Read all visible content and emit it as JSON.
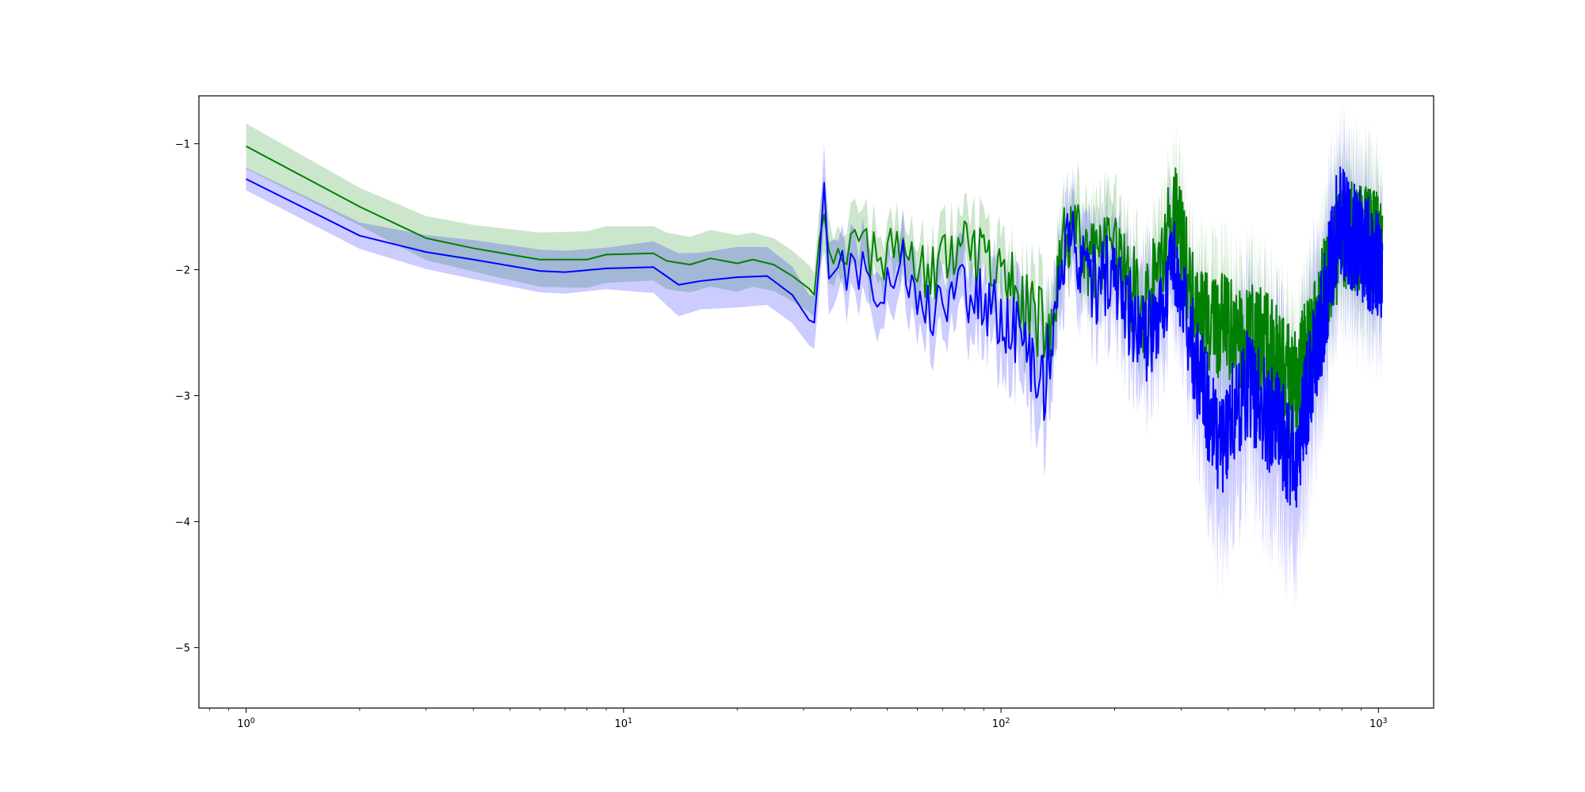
{
  "chart_data": {
    "type": "line",
    "title": "",
    "xlabel": "",
    "ylabel": "",
    "xscale": "log",
    "xlim": [
      0.75,
      1400
    ],
    "ylim": [
      -5.48,
      -0.62
    ],
    "grid": false,
    "legend": "none",
    "x_ticks": [
      {
        "base": "10",
        "exp": "0",
        "value": 1
      },
      {
        "base": "10",
        "exp": "1",
        "value": 10
      },
      {
        "base": "10",
        "exp": "2",
        "value": 100
      },
      {
        "base": "10",
        "exp": "3",
        "value": 1000
      }
    ],
    "y_ticks": [
      {
        "label": "−1",
        "value": -1
      },
      {
        "label": "−2",
        "value": -2
      },
      {
        "label": "−3",
        "value": -3
      },
      {
        "label": "−4",
        "value": -4
      },
      {
        "label": "−5",
        "value": -5
      }
    ],
    "x_range": [
      1,
      1024
    ],
    "series": [
      {
        "color": "#008000",
        "band_color": "#008000",
        "band_opacity": 0.2,
        "anchors": [
          {
            "x": 1,
            "y": -1.02,
            "lo": -1.2,
            "hi": -0.84
          },
          {
            "x": 2,
            "y": -1.5,
            "lo": -1.65,
            "hi": -1.35
          },
          {
            "x": 3,
            "y": -1.75,
            "lo": -1.93,
            "hi": -1.58
          },
          {
            "x": 4,
            "y": -1.83,
            "lo": -1.98,
            "hi": -1.61
          },
          {
            "x": 6,
            "y": -1.92,
            "lo": -2.1,
            "hi": -1.67
          },
          {
            "x": 8,
            "y": -1.92,
            "lo": -2.12,
            "hi": -1.67
          },
          {
            "x": 9,
            "y": -1.88,
            "lo": -2.08,
            "hi": -1.63
          },
          {
            "x": 12,
            "y": -1.87,
            "lo": -2.05,
            "hi": -1.62
          },
          {
            "x": 13,
            "y": -1.93,
            "lo": -2.13,
            "hi": -1.68
          },
          {
            "x": 15,
            "y": -1.96,
            "lo": -2.17,
            "hi": -1.73
          },
          {
            "x": 17,
            "y": -1.91,
            "lo": -2.12,
            "hi": -1.67
          },
          {
            "x": 20,
            "y": -1.95,
            "lo": -2.15,
            "hi": -1.7
          },
          {
            "x": 22,
            "y": -1.92,
            "lo": -2.12,
            "hi": -1.69
          },
          {
            "x": 25,
            "y": -1.96,
            "lo": -2.15,
            "hi": -1.73
          },
          {
            "x": 28,
            "y": -2.05,
            "lo": -2.24,
            "hi": -1.84
          },
          {
            "x": 31,
            "y": -2.15,
            "lo": -2.33,
            "hi": -1.96
          },
          {
            "x": 32,
            "y": -2.2,
            "lo": -2.37,
            "hi": -2.02
          },
          {
            "x": 34,
            "y": -1.66,
            "lo": -1.9,
            "hi": -1.38
          },
          {
            "x": 36,
            "y": -1.85,
            "lo": -2.05,
            "hi": -1.64
          },
          {
            "x": 40,
            "y": -1.78,
            "lo": -2.0,
            "hi": -1.55
          },
          {
            "x": 48,
            "y": -1.93,
            "lo": -2.12,
            "hi": -1.72
          },
          {
            "x": 56,
            "y": -1.82,
            "lo": -2.04,
            "hi": -1.6
          },
          {
            "x": 65,
            "y": -2.08,
            "lo": -2.3,
            "hi": -1.86
          },
          {
            "x": 75,
            "y": -1.82,
            "lo": -2.08,
            "hi": -1.6
          },
          {
            "x": 90,
            "y": -1.95,
            "lo": -2.2,
            "hi": -1.72
          },
          {
            "x": 110,
            "y": -2.15,
            "lo": -2.42,
            "hi": -1.9
          },
          {
            "x": 135,
            "y": -2.55,
            "lo": -2.85,
            "hi": -2.2
          },
          {
            "x": 150,
            "y": -1.65,
            "lo": -1.92,
            "hi": -1.4
          },
          {
            "x": 170,
            "y": -1.95,
            "lo": -2.3,
            "hi": -1.65
          },
          {
            "x": 200,
            "y": -1.9,
            "lo": -2.25,
            "hi": -1.55
          },
          {
            "x": 240,
            "y": -2.35,
            "lo": -2.7,
            "hi": -2.0
          },
          {
            "x": 290,
            "y": -1.55,
            "lo": -1.9,
            "hi": -1.2
          },
          {
            "x": 330,
            "y": -2.35,
            "lo": -2.75,
            "hi": -1.95
          },
          {
            "x": 400,
            "y": -2.5,
            "lo": -2.95,
            "hi": -2.05
          },
          {
            "x": 500,
            "y": -2.6,
            "lo": -3.05,
            "hi": -2.15
          },
          {
            "x": 600,
            "y": -2.95,
            "lo": -3.35,
            "hi": -2.55
          },
          {
            "x": 700,
            "y": -2.3,
            "lo": -2.75,
            "hi": -1.85
          },
          {
            "x": 800,
            "y": -1.7,
            "lo": -2.2,
            "hi": -1.25
          },
          {
            "x": 1024,
            "y": -1.8,
            "lo": -2.3,
            "hi": -1.3
          }
        ]
      },
      {
        "color": "#0000ff",
        "band_color": "#0000ff",
        "band_opacity": 0.2,
        "anchors": [
          {
            "x": 1,
            "y": -1.28,
            "lo": -1.38,
            "hi": -1.2
          },
          {
            "x": 2,
            "y": -1.73,
            "lo": -1.83,
            "hi": -1.62
          },
          {
            "x": 3,
            "y": -1.86,
            "lo": -1.99,
            "hi": -1.72
          },
          {
            "x": 4,
            "y": -1.92,
            "lo": -2.07,
            "hi": -1.76
          },
          {
            "x": 6,
            "y": -2.01,
            "lo": -2.17,
            "hi": -1.83
          },
          {
            "x": 7,
            "y": -2.02,
            "lo": -2.18,
            "hi": -1.84
          },
          {
            "x": 9,
            "y": -1.99,
            "lo": -2.15,
            "hi": -1.82
          },
          {
            "x": 12,
            "y": -1.98,
            "lo": -2.2,
            "hi": -1.79
          },
          {
            "x": 14,
            "y": -2.12,
            "lo": -2.38,
            "hi": -1.88
          },
          {
            "x": 16,
            "y": -2.09,
            "lo": -2.3,
            "hi": -1.85
          },
          {
            "x": 20,
            "y": -2.06,
            "lo": -2.3,
            "hi": -1.82
          },
          {
            "x": 24,
            "y": -2.05,
            "lo": -2.28,
            "hi": -1.82
          },
          {
            "x": 28,
            "y": -2.2,
            "lo": -2.42,
            "hi": -1.97
          },
          {
            "x": 31,
            "y": -2.4,
            "lo": -2.6,
            "hi": -2.2
          },
          {
            "x": 32,
            "y": -2.42,
            "lo": -2.62,
            "hi": -2.2
          },
          {
            "x": 34,
            "y": -1.48,
            "lo": -1.75,
            "hi": -1.2
          },
          {
            "x": 35,
            "y": -2.1,
            "lo": -2.35,
            "hi": -1.85
          },
          {
            "x": 40,
            "y": -1.95,
            "lo": -2.2,
            "hi": -1.7
          },
          {
            "x": 48,
            "y": -2.12,
            "lo": -2.35,
            "hi": -1.88
          },
          {
            "x": 56,
            "y": -1.95,
            "lo": -2.2,
            "hi": -1.7
          },
          {
            "x": 65,
            "y": -2.35,
            "lo": -2.6,
            "hi": -2.1
          },
          {
            "x": 75,
            "y": -2.1,
            "lo": -2.4,
            "hi": -1.85
          },
          {
            "x": 90,
            "y": -2.25,
            "lo": -2.55,
            "hi": -2.0
          },
          {
            "x": 110,
            "y": -2.5,
            "lo": -2.9,
            "hi": -2.15
          },
          {
            "x": 130,
            "y": -2.9,
            "lo": -3.35,
            "hi": -2.5
          },
          {
            "x": 150,
            "y": -1.72,
            "lo": -2.05,
            "hi": -1.45
          },
          {
            "x": 170,
            "y": -2.15,
            "lo": -2.55,
            "hi": -1.8
          },
          {
            "x": 200,
            "y": -2.05,
            "lo": -2.45,
            "hi": -1.7
          },
          {
            "x": 240,
            "y": -2.6,
            "lo": -3.1,
            "hi": -2.15
          },
          {
            "x": 290,
            "y": -1.9,
            "lo": -2.3,
            "hi": -1.5
          },
          {
            "x": 330,
            "y": -2.8,
            "lo": -3.4,
            "hi": -2.3
          },
          {
            "x": 380,
            "y": -3.4,
            "lo": -4.3,
            "hi": -2.7
          },
          {
            "x": 450,
            "y": -2.9,
            "lo": -3.6,
            "hi": -2.3
          },
          {
            "x": 550,
            "y": -3.3,
            "lo": -4.2,
            "hi": -2.6
          },
          {
            "x": 600,
            "y": -3.5,
            "lo": -4.4,
            "hi": -2.8
          },
          {
            "x": 700,
            "y": -2.5,
            "lo": -3.2,
            "hi": -1.9
          },
          {
            "x": 780,
            "y": -1.6,
            "lo": -2.2,
            "hi": -1.1
          },
          {
            "x": 1024,
            "y": -2.0,
            "lo": -2.5,
            "hi": -1.5
          }
        ]
      }
    ]
  }
}
